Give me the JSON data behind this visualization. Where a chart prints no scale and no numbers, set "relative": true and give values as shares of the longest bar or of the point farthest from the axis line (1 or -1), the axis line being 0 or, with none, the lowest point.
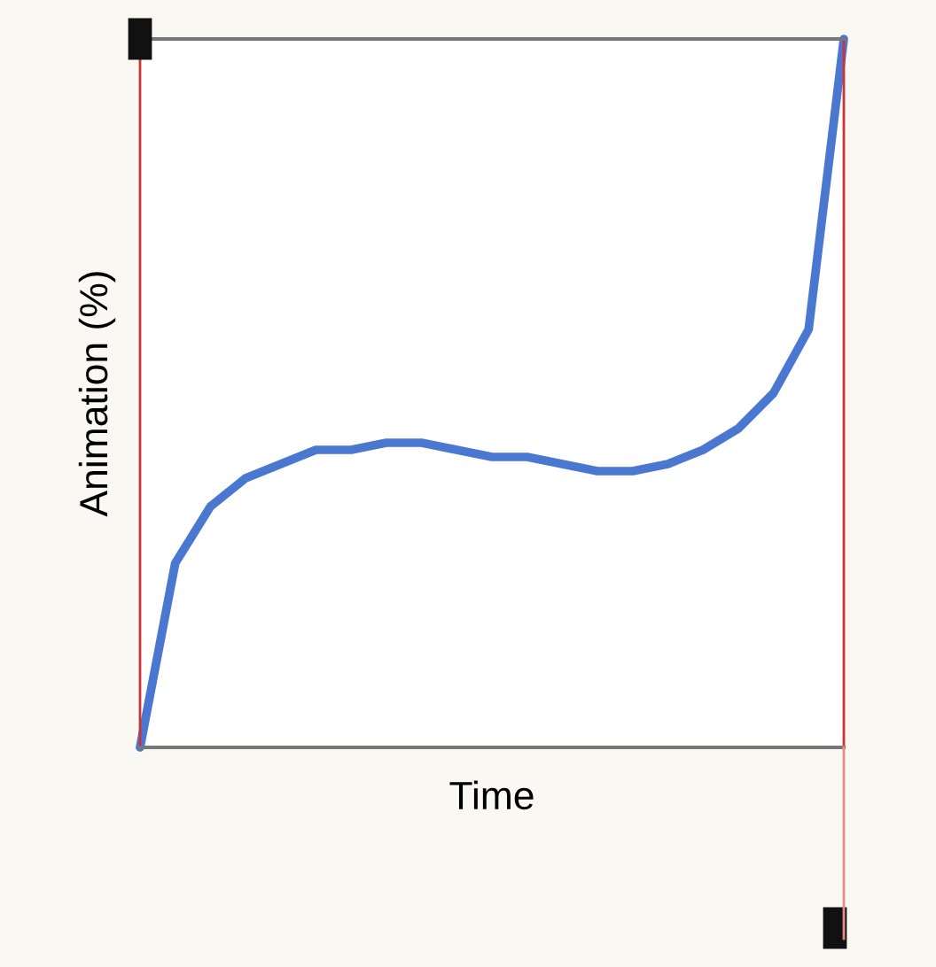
{
  "chart_data": {
    "type": "line",
    "xlabel": "Time",
    "ylabel": "Animation (%)",
    "relative": true,
    "categories": [
      null,
      null,
      null,
      null,
      null,
      null,
      null,
      null,
      null,
      null,
      null,
      null,
      null,
      null,
      null,
      null,
      null,
      null,
      null,
      null,
      null
    ],
    "series": [
      {
        "color": "#4a78d0",
        "values": [
          0,
          0.26,
          0.34,
          0.38,
          0.4,
          0.42,
          0.42,
          0.43,
          0.43,
          0.42,
          0.41,
          0.41,
          0.4,
          0.39,
          0.39,
          0.4,
          0.42,
          0.45,
          0.5,
          0.59,
          1.0
        ]
      }
    ],
    "grid": false,
    "legend": false,
    "marker": "none",
    "line_style": "solid"
  }
}
